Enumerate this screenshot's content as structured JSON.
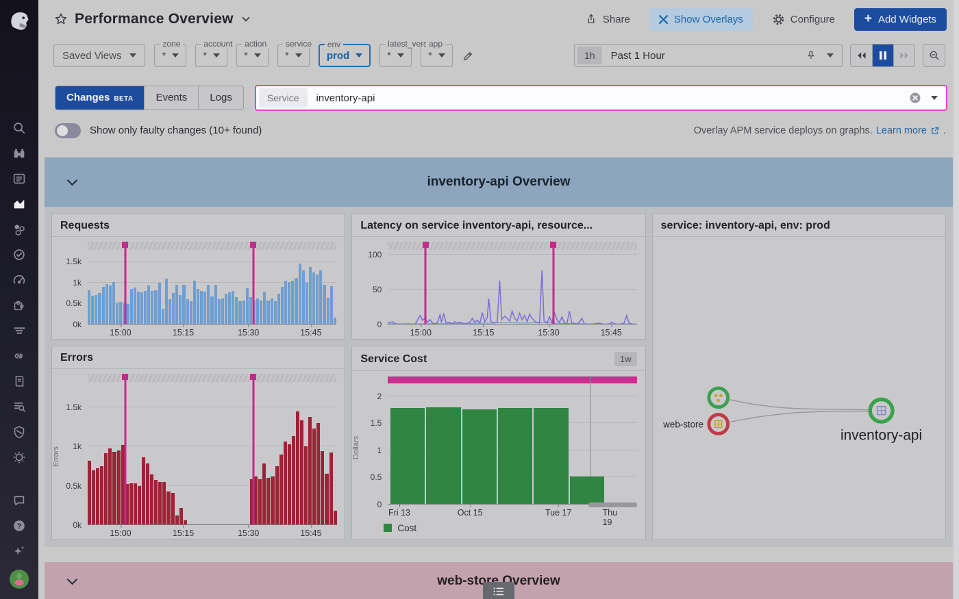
{
  "header": {
    "title": "Performance Overview",
    "share_label": "Share",
    "show_overlays_label": "Show Overlays",
    "configure_label": "Configure",
    "add_widgets_label": "Add Widgets"
  },
  "glyphs": {
    "plus": "+",
    "question": "?"
  },
  "sidebar": {
    "icons": [
      "datadog-logo",
      "search",
      "watchdog",
      "event-list",
      "dashboards",
      "processes",
      "monitors",
      "metrics",
      "integrations",
      "apm-traces",
      "service-connections",
      "notebooks",
      "log-search",
      "security-shield",
      "synthetics-globe",
      "chat",
      "help",
      "sparkles",
      "user-avatar"
    ]
  },
  "filters": {
    "saved_views_label": "Saved Views",
    "vars": [
      {
        "label": "zone",
        "value": "*"
      },
      {
        "label": "account",
        "value": "*"
      },
      {
        "label": "action",
        "value": "*"
      },
      {
        "label": "service",
        "value": "*"
      },
      {
        "label": "env",
        "value": "prod",
        "active": true
      },
      {
        "label": "latest_versions",
        "value": "*"
      },
      {
        "label": "app",
        "value": "*"
      }
    ],
    "time": {
      "badge": "1h",
      "label": "Past 1 Hour"
    }
  },
  "tabs": {
    "items": [
      {
        "label": "Changes",
        "beta": "BETA",
        "active": true
      },
      {
        "label": "Events"
      },
      {
        "label": "Logs"
      }
    ]
  },
  "service_search": {
    "label": "Service",
    "value": "inventory-api"
  },
  "controls": {
    "toggle_label": "Show only faulty changes (10+ found)",
    "overlay_note": "Overlay APM service deploys on graphs.",
    "learn_more_label": "Learn more",
    "period": "."
  },
  "sections": [
    {
      "title": "inventory-api Overview"
    },
    {
      "title": "web-store Overview"
    }
  ],
  "colors": {
    "accent_blue": "#1b4c9e",
    "deploy_magenta": "#c32b8a",
    "input_highlight": "#e441cd",
    "requests_bar": "#6f9ed1",
    "errors_bar": "#9d2336",
    "cost_bar": "#2f8541",
    "latency_line": "#7b6cd9"
  },
  "chart_data": [
    {
      "id": "requests",
      "type": "bar",
      "title": "Requests",
      "color": "#6f9ed1",
      "ylim": [
        0,
        1.75
      ],
      "y_ticks": [
        {
          "v": 0,
          "label": "0k"
        },
        {
          "v": 0.5,
          "label": "0.5k"
        },
        {
          "v": 1,
          "label": "1k"
        },
        {
          "v": 1.5,
          "label": "1.5k"
        }
      ],
      "x_ticks": [
        {
          "pct": 13.2,
          "label": "15:00"
        },
        {
          "pct": 38.4,
          "label": "15:15"
        },
        {
          "pct": 64.6,
          "label": "15:30"
        },
        {
          "pct": 89.7,
          "label": "15:45"
        }
      ],
      "events_pct": [
        15.1,
        66.5
      ],
      "values": [
        0.82,
        0.68,
        0.7,
        0.75,
        0.9,
        0.97,
        0.93,
        1.02,
        0.53,
        0.54,
        0.5,
        0.49,
        0.85,
        0.88,
        0.78,
        0.77,
        0.8,
        0.94,
        0.8,
        0.82,
        1.0,
        0.38,
        1.1,
        0.6,
        0.75,
        0.95,
        0.7,
        0.95,
        0.6,
        0.55,
        1.05,
        0.85,
        0.8,
        0.78,
        0.95,
        0.67,
        0.95,
        0.6,
        0.62,
        0.73,
        0.77,
        0.8,
        0.65,
        0.55,
        0.57,
        0.87,
        0.65,
        0.58,
        0.62,
        0.57,
        0.78,
        0.58,
        0.62,
        0.55,
        0.73,
        0.9,
        1.05,
        1.02,
        1.05,
        1.12,
        1.45,
        1.3,
        1.0,
        1.38,
        1.25,
        1.2,
        1.3,
        0.95,
        0.64,
        0.92,
        0.17
      ]
    },
    {
      "id": "latency",
      "type": "line",
      "title": "Latency on service inventory-api, resource...",
      "color": "#7b6cd9",
      "secondary_color": "#6f9ed1",
      "ylim": [
        0,
        105
      ],
      "y_ticks": [
        {
          "v": 0,
          "label": "0"
        },
        {
          "v": 50,
          "label": "50"
        },
        {
          "v": 100,
          "label": "100"
        }
      ],
      "x_ticks": [
        {
          "pct": 13.2,
          "label": "15:00"
        },
        {
          "pct": 38.4,
          "label": "15:15"
        },
        {
          "pct": 64.6,
          "label": "15:30"
        },
        {
          "pct": 89.7,
          "label": "15:45"
        }
      ],
      "events_pct": [
        15.1,
        66.5
      ],
      "points": [
        [
          0,
          2
        ],
        [
          2,
          4
        ],
        [
          3,
          1
        ],
        [
          6,
          0
        ],
        [
          8,
          1
        ],
        [
          11,
          0
        ],
        [
          13,
          13
        ],
        [
          14,
          6
        ],
        [
          15,
          9
        ],
        [
          16,
          3
        ],
        [
          17,
          7
        ],
        [
          18,
          2
        ],
        [
          19,
          1
        ],
        [
          20,
          3
        ],
        [
          21,
          14
        ],
        [
          21.6,
          3
        ],
        [
          22.5,
          15
        ],
        [
          23.5,
          2
        ],
        [
          25,
          3
        ],
        [
          26,
          1
        ],
        [
          27,
          4
        ],
        [
          28,
          2
        ],
        [
          29,
          3
        ],
        [
          30,
          2
        ],
        [
          31,
          1
        ],
        [
          33,
          3
        ],
        [
          34,
          9
        ],
        [
          35,
          3
        ],
        [
          36,
          6
        ],
        [
          37,
          2
        ],
        [
          38,
          17
        ],
        [
          39,
          4
        ],
        [
          40,
          10
        ],
        [
          40.6,
          37
        ],
        [
          41.5,
          4
        ],
        [
          42.5,
          2
        ],
        [
          44,
          3
        ],
        [
          45,
          63
        ],
        [
          45.8,
          7
        ],
        [
          47,
          12
        ],
        [
          48,
          9
        ],
        [
          49,
          5
        ],
        [
          50,
          19
        ],
        [
          51,
          9
        ],
        [
          52,
          5
        ],
        [
          53,
          16
        ],
        [
          54,
          7
        ],
        [
          55,
          13
        ],
        [
          56,
          4
        ],
        [
          57,
          15
        ],
        [
          58,
          9
        ],
        [
          59,
          5
        ],
        [
          60,
          3
        ],
        [
          61,
          2
        ],
        [
          62,
          78
        ],
        [
          62.8,
          5
        ],
        [
          64,
          2
        ],
        [
          65,
          11
        ],
        [
          66,
          3
        ],
        [
          67,
          17
        ],
        [
          68,
          7
        ],
        [
          69,
          3
        ],
        [
          70,
          11
        ],
        [
          71,
          2
        ],
        [
          72,
          1
        ],
        [
          73,
          19
        ],
        [
          74,
          2
        ],
        [
          76,
          1
        ],
        [
          77,
          3
        ],
        [
          78,
          9
        ],
        [
          79,
          1
        ],
        [
          81,
          0
        ],
        [
          83,
          1
        ],
        [
          85,
          2
        ],
        [
          87,
          0
        ],
        [
          89,
          1
        ],
        [
          90,
          3
        ],
        [
          92,
          0
        ],
        [
          94,
          1
        ],
        [
          95,
          2
        ],
        [
          96,
          13
        ],
        [
          97,
          2
        ],
        [
          98,
          1
        ],
        [
          100,
          0
        ]
      ],
      "secondary_points": [
        [
          0,
          1
        ],
        [
          15,
          1
        ],
        [
          30,
          1.5
        ],
        [
          42,
          2
        ],
        [
          45,
          3
        ],
        [
          50,
          2.5
        ],
        [
          55,
          2
        ],
        [
          62,
          3
        ],
        [
          70,
          1.5
        ],
        [
          80,
          1
        ],
        [
          90,
          0.8
        ],
        [
          100,
          0.8
        ]
      ]
    },
    {
      "id": "errors",
      "type": "bar",
      "title": "Errors",
      "ylabel": "Errors",
      "color": "#9d2336",
      "ylim": [
        0,
        1.8
      ],
      "y_ticks": [
        {
          "v": 0,
          "label": "0k"
        },
        {
          "v": 0.5,
          "label": "0.5k"
        },
        {
          "v": 1,
          "label": "1k"
        },
        {
          "v": 1.5,
          "label": "1.5k"
        }
      ],
      "x_ticks": [
        {
          "pct": 13.2,
          "label": "15:00"
        },
        {
          "pct": 38.4,
          "label": "15:15"
        },
        {
          "pct": 64.6,
          "label": "15:30"
        },
        {
          "pct": 89.7,
          "label": "15:45"
        }
      ],
      "events_pct": [
        15.1,
        66.5
      ],
      "values": [
        0.82,
        0.7,
        0.72,
        0.75,
        0.91,
        0.97,
        0.93,
        0.95,
        1.02,
        0.52,
        0.53,
        0.53,
        0.5,
        0.86,
        0.78,
        0.64,
        0.57,
        0.55,
        0.55,
        0.43,
        0.41,
        0.12,
        0.22,
        0.06,
        0,
        0,
        0,
        0,
        0,
        0,
        0,
        0,
        0,
        0,
        0,
        0,
        0,
        0,
        0,
        0.58,
        0.62,
        0.58,
        0.78,
        0.6,
        0.62,
        0.75,
        0.9,
        1.06,
        1.03,
        1.13,
        1.44,
        1.33,
        1.0,
        1.37,
        1.23,
        1.3,
        0.94,
        0.65,
        0.92,
        0.18
      ]
    },
    {
      "id": "service-cost",
      "type": "bar",
      "title": "Service Cost",
      "badge": "1w",
      "ylabel": "Dollars",
      "color": "#2f8541",
      "ylim": [
        0,
        2.2
      ],
      "bar_width_pct": 14,
      "event_strip": "solid",
      "cursor_pct": 81.5,
      "scroll_chip": [
        80.5,
        100
      ],
      "y_ticks": [
        {
          "v": 0,
          "label": "0"
        },
        {
          "v": 0.5,
          "label": "0.5"
        },
        {
          "v": 1,
          "label": "1"
        },
        {
          "v": 1.5,
          "label": "1.5"
        },
        {
          "v": 2,
          "label": "2"
        }
      ],
      "x_ticks": [
        {
          "pct": 4.6,
          "label": "Fri 13"
        },
        {
          "pct": 33,
          "label": "Oct 15"
        },
        {
          "pct": 68.5,
          "label": "Tue 17"
        },
        {
          "pct": 90.8,
          "label": "Thu 19"
        }
      ],
      "values": [
        1.78,
        1.79,
        1.76,
        1.78,
        1.78,
        0.52
      ],
      "legend": [
        {
          "label": "Cost",
          "color": "#2f8541"
        }
      ]
    }
  ],
  "service_map": {
    "title": "service: inventory-api, env: prod",
    "nodes": [
      {
        "id": "web-store-alt",
        "status_color": "#3aa14e"
      },
      {
        "id": "web-store",
        "label": "web-store",
        "status_color": "#c23a45"
      },
      {
        "id": "inventory-api",
        "label": "inventory-api",
        "status_color": "#3aa14e"
      }
    ]
  }
}
